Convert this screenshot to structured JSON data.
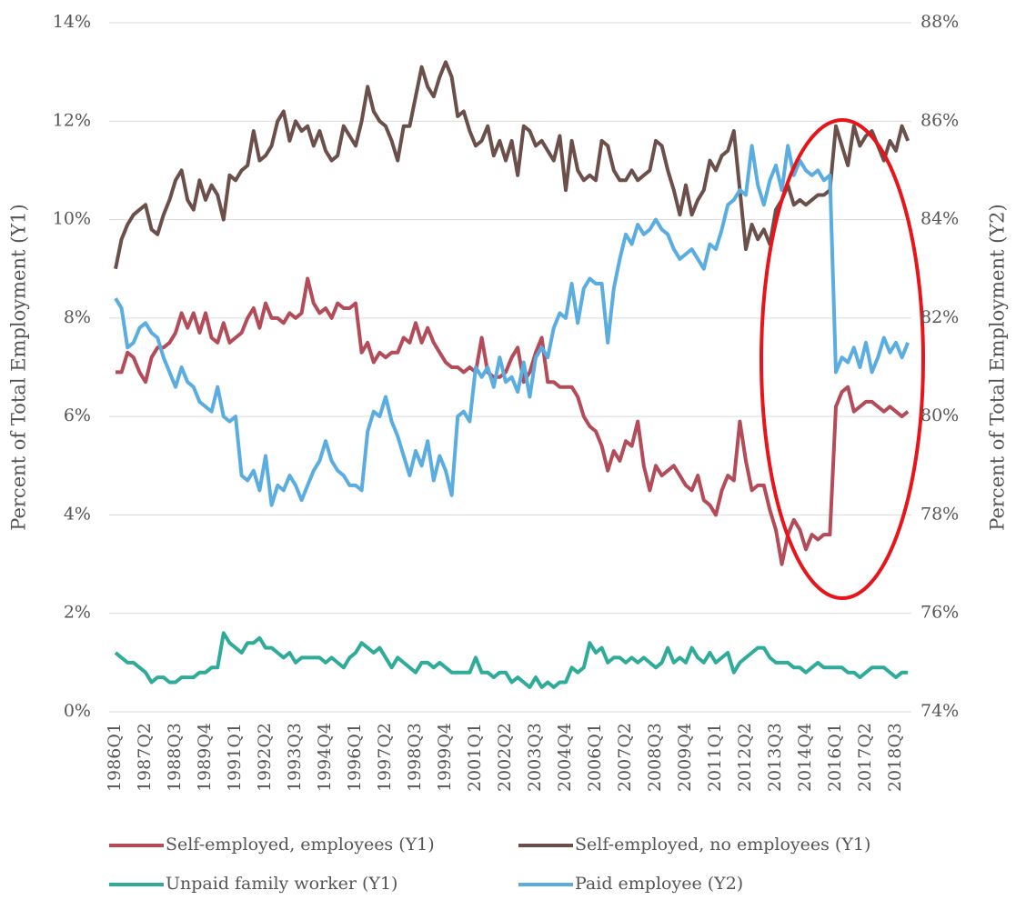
{
  "chart_data": {
    "type": "line",
    "y_label": "Percent of Total Employment (Y1)",
    "y2_label": "Percent of Total Employment (Y2)",
    "categories": [
      "1986Q1",
      null,
      null,
      null,
      null,
      "1987Q2",
      null,
      null,
      null,
      null,
      "1988Q3",
      null,
      null,
      null,
      null,
      "1989Q4",
      null,
      null,
      null,
      null,
      "1991Q1",
      null,
      null,
      null,
      null,
      "1992Q2",
      null,
      null,
      null,
      null,
      "1993Q3",
      null,
      null,
      null,
      null,
      "1994Q4",
      null,
      null,
      null,
      null,
      "1996Q1",
      null,
      null,
      null,
      null,
      "1997Q2",
      null,
      null,
      null,
      null,
      "1998Q3",
      null,
      null,
      null,
      null,
      "1999Q4",
      null,
      null,
      null,
      null,
      "2001Q1",
      null,
      null,
      null,
      null,
      "2002Q2",
      null,
      null,
      null,
      null,
      "2003Q3",
      null,
      null,
      null,
      null,
      "2004Q4",
      null,
      null,
      null,
      null,
      "2006Q1",
      null,
      null,
      null,
      null,
      "2007Q2",
      null,
      null,
      null,
      null,
      "2008Q3",
      null,
      null,
      null,
      null,
      "2009Q4",
      null,
      null,
      null,
      null,
      "2011Q1",
      null,
      null,
      null,
      null,
      "2012Q2",
      null,
      null,
      null,
      null,
      "2013Q3",
      null,
      null,
      null,
      null,
      "2014Q4",
      null,
      null,
      null,
      null,
      "2016Q1",
      null,
      null,
      null,
      null,
      "2017Q2",
      null,
      null,
      null,
      null,
      "2018Q3",
      null,
      null
    ],
    "series": [
      {
        "name": "Self-employed, employees (Y1)",
        "color": "#b34b58",
        "axis": "y",
        "values": [
          6.9,
          6.9,
          7.3,
          7.2,
          6.9,
          6.7,
          7.2,
          7.4,
          7.4,
          7.5,
          7.7,
          8.1,
          7.8,
          8.1,
          7.7,
          8.1,
          7.6,
          7.5,
          7.9,
          7.5,
          7.6,
          7.7,
          8.0,
          8.2,
          7.8,
          8.3,
          8.0,
          8.0,
          7.9,
          8.1,
          8.0,
          8.1,
          8.8,
          8.3,
          8.1,
          8.2,
          8.0,
          8.3,
          8.2,
          8.2,
          8.3,
          7.3,
          7.5,
          7.1,
          7.3,
          7.2,
          7.3,
          7.3,
          7.6,
          7.5,
          7.9,
          7.5,
          7.8,
          7.5,
          7.3,
          7.1,
          7.0,
          7.0,
          6.9,
          7.0,
          6.9,
          7.6,
          6.9,
          6.8,
          6.8,
          6.9,
          7.2,
          7.4,
          6.7,
          6.9,
          7.3,
          7.6,
          6.7,
          6.7,
          6.6,
          6.6,
          6.6,
          6.4,
          6.0,
          5.8,
          5.7,
          5.4,
          4.9,
          5.3,
          5.1,
          5.5,
          5.4,
          5.9,
          5.0,
          4.5,
          5.0,
          4.8,
          4.9,
          5.0,
          4.8,
          4.6,
          4.5,
          4.8,
          4.3,
          4.2,
          4.0,
          4.5,
          4.8,
          4.7,
          5.9,
          5.1,
          4.5,
          4.6,
          4.6,
          4.1,
          3.7,
          3.0,
          3.6,
          3.9,
          3.7,
          3.3,
          3.6,
          3.5,
          3.6,
          3.6,
          6.2,
          6.5,
          6.6,
          6.1,
          6.2,
          6.3,
          6.3,
          6.2,
          6.1,
          6.2,
          6.1,
          6.0,
          6.1
        ]
      },
      {
        "name": "Self-employed, no employees (Y1)",
        "color": "#6b4f4b",
        "axis": "y",
        "values": [
          9.0,
          9.6,
          9.9,
          10.1,
          10.2,
          10.3,
          9.8,
          9.7,
          10.1,
          10.4,
          10.8,
          11.0,
          10.4,
          10.2,
          10.8,
          10.4,
          10.7,
          10.5,
          10.0,
          10.9,
          10.8,
          11.0,
          11.1,
          11.8,
          11.2,
          11.3,
          11.5,
          12.0,
          12.2,
          11.6,
          12.0,
          11.8,
          11.9,
          11.5,
          11.8,
          11.4,
          11.2,
          11.3,
          11.9,
          11.7,
          11.5,
          12.0,
          12.7,
          12.2,
          12.0,
          11.9,
          11.6,
          11.2,
          11.9,
          11.9,
          12.5,
          13.1,
          12.7,
          12.5,
          12.9,
          13.2,
          12.9,
          12.1,
          12.2,
          11.8,
          11.5,
          11.6,
          11.9,
          11.3,
          11.6,
          11.2,
          11.6,
          10.9,
          11.9,
          11.8,
          11.5,
          11.6,
          11.4,
          11.2,
          11.7,
          10.6,
          11.6,
          11.0,
          10.8,
          10.9,
          10.8,
          11.6,
          11.5,
          11.0,
          10.8,
          10.8,
          11.0,
          10.8,
          10.9,
          11.0,
          11.6,
          11.5,
          11.0,
          10.6,
          10.1,
          10.7,
          10.1,
          10.4,
          10.6,
          11.2,
          11.0,
          11.3,
          11.4,
          11.8,
          10.6,
          9.4,
          9.9,
          9.6,
          9.8,
          9.5,
          10.2,
          10.4,
          10.7,
          10.3,
          10.4,
          10.3,
          10.4,
          10.5,
          10.5,
          10.6,
          11.9,
          11.5,
          11.1,
          11.9,
          11.5,
          11.7,
          11.8,
          11.5,
          11.2,
          11.6,
          11.4,
          11.9,
          11.6
        ]
      },
      {
        "name": "Unpaid family worker (Y1)",
        "color": "#2eab99",
        "axis": "y",
        "values": [
          1.2,
          1.1,
          1.0,
          1.0,
          0.9,
          0.8,
          0.6,
          0.7,
          0.7,
          0.6,
          0.6,
          0.7,
          0.7,
          0.7,
          0.8,
          0.8,
          0.9,
          0.9,
          1.6,
          1.4,
          1.3,
          1.2,
          1.4,
          1.4,
          1.5,
          1.3,
          1.3,
          1.2,
          1.1,
          1.2,
          1.0,
          1.1,
          1.1,
          1.1,
          1.1,
          1.0,
          1.1,
          1.0,
          0.9,
          1.1,
          1.2,
          1.4,
          1.3,
          1.2,
          1.3,
          1.1,
          0.9,
          1.1,
          1.0,
          0.9,
          0.8,
          1.0,
          1.0,
          0.9,
          1.0,
          0.9,
          0.8,
          0.8,
          0.8,
          0.8,
          1.1,
          0.8,
          0.8,
          0.7,
          0.8,
          0.8,
          0.6,
          0.7,
          0.6,
          0.5,
          0.7,
          0.5,
          0.6,
          0.5,
          0.6,
          0.6,
          0.9,
          0.8,
          0.9,
          1.4,
          1.2,
          1.3,
          1.0,
          1.1,
          1.1,
          1.0,
          1.1,
          1.0,
          1.1,
          1.0,
          0.9,
          1.0,
          1.3,
          1.0,
          1.1,
          1.0,
          1.3,
          1.1,
          1.0,
          1.2,
          1.0,
          1.1,
          1.2,
          0.8,
          1.0,
          1.1,
          1.2,
          1.3,
          1.3,
          1.1,
          1.0,
          1.0,
          1.0,
          0.9,
          0.9,
          0.8,
          0.9,
          1.0,
          0.9,
          0.9,
          0.9,
          0.9,
          0.8,
          0.8,
          0.7,
          0.8,
          0.9,
          0.9,
          0.9,
          0.8,
          0.7,
          0.8,
          0.8
        ]
      },
      {
        "name": "Paid employee (Y2)",
        "color": "#5aade0",
        "axis": "y2",
        "values": [
          82.4,
          82.2,
          81.4,
          81.5,
          81.8,
          81.9,
          81.7,
          81.6,
          81.2,
          80.9,
          80.6,
          81.0,
          80.7,
          80.6,
          80.3,
          80.2,
          80.1,
          80.6,
          80.0,
          79.9,
          80.0,
          78.8,
          78.7,
          78.9,
          78.5,
          79.2,
          78.2,
          78.6,
          78.5,
          78.8,
          78.6,
          78.3,
          78.6,
          78.9,
          79.1,
          79.5,
          79.1,
          78.9,
          78.8,
          78.6,
          78.6,
          78.5,
          79.7,
          80.1,
          80.0,
          80.4,
          79.9,
          79.6,
          79.2,
          78.8,
          79.3,
          79.0,
          79.5,
          78.7,
          79.2,
          78.9,
          78.4,
          80.0,
          80.1,
          79.9,
          81.0,
          80.8,
          81.0,
          80.6,
          81.2,
          80.7,
          80.8,
          80.5,
          81.1,
          80.4,
          81.2,
          81.4,
          81.2,
          81.8,
          82.1,
          82.0,
          82.7,
          81.9,
          82.6,
          82.8,
          82.7,
          82.7,
          81.5,
          82.6,
          83.2,
          83.7,
          83.5,
          83.9,
          83.7,
          83.8,
          84.0,
          83.8,
          83.7,
          83.4,
          83.2,
          83.3,
          83.4,
          83.2,
          83.0,
          83.5,
          83.4,
          83.8,
          84.3,
          84.4,
          84.6,
          84.5,
          85.5,
          84.7,
          84.3,
          84.8,
          85.1,
          84.6,
          85.5,
          84.9,
          85.2,
          85.0,
          84.9,
          85.0,
          84.8,
          84.9,
          80.9,
          81.2,
          81.1,
          81.4,
          81.0,
          81.5,
          80.9,
          81.2,
          81.6,
          81.3,
          81.5,
          81.2,
          81.5
        ]
      }
    ],
    "ylim": [
      0,
      14
    ],
    "yticks": [
      {
        "value": 0,
        "label": "0%"
      },
      {
        "value": 2,
        "label": "2%"
      },
      {
        "value": 4,
        "label": "4%"
      },
      {
        "value": 6,
        "label": "6%"
      },
      {
        "value": 8,
        "label": "8%"
      },
      {
        "value": 10,
        "label": "10%"
      },
      {
        "value": 12,
        "label": "12%"
      },
      {
        "value": 14,
        "label": "14%"
      }
    ],
    "y2lim": [
      74,
      88
    ],
    "y2ticks": [
      {
        "value": 74,
        "label": "74%"
      },
      {
        "value": 76,
        "label": "76%"
      },
      {
        "value": 78,
        "label": "78%"
      },
      {
        "value": 80,
        "label": "80%"
      },
      {
        "value": 82,
        "label": "82%"
      },
      {
        "value": 84,
        "label": "84%"
      },
      {
        "value": 86,
        "label": "86%"
      },
      {
        "value": 88,
        "label": "88%"
      }
    ],
    "grid": true,
    "legend": "bottom"
  }
}
